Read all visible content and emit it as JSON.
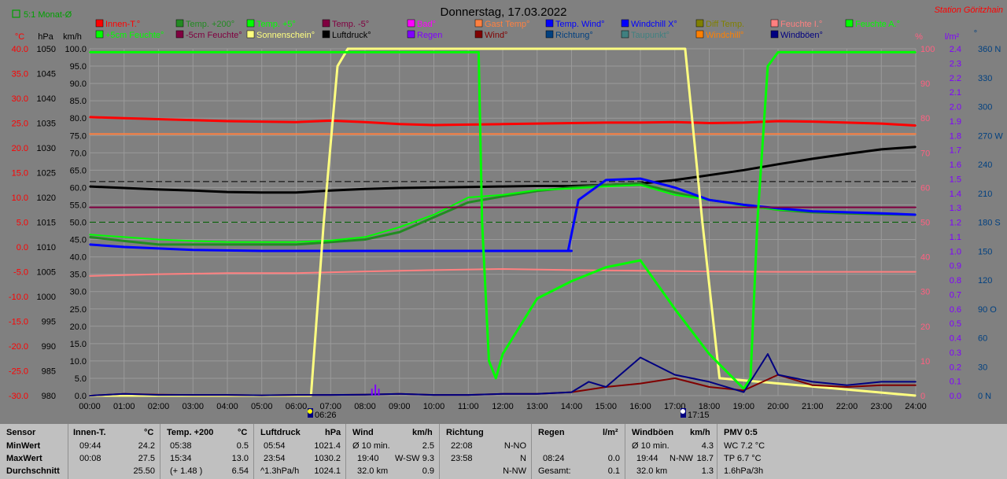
{
  "header": {
    "title": "Donnerstag, 17.03.2022",
    "station": "Station Göritzhain",
    "toggle_label": "5:1 Monat-Ø"
  },
  "units": {
    "celsius": "°C",
    "hpa": "hPa",
    "kmh": "km/h",
    "percent": "%",
    "lm2": "l/m²",
    "deg": "°"
  },
  "legend": [
    {
      "label": "Innen-T.°",
      "color": "#ff0000"
    },
    {
      "label": "Temp. +200°",
      "color": "#228b22"
    },
    {
      "label": "Temp. +5°",
      "color": "#00ff00"
    },
    {
      "label": "Temp. -5°",
      "color": "#800040"
    },
    {
      "label": "Bad°",
      "color": "#ff00ff"
    },
    {
      "label": "Gast Temp°",
      "color": "#ff8040"
    },
    {
      "label": "Temp. Wind°",
      "color": "#0000ff"
    },
    {
      "label": "Windchill X°",
      "color": "#0000ff"
    },
    {
      "label": "Diff Temp.",
      "color": "#808000"
    },
    {
      "label": "Feuchte I.°",
      "color": "#ff8080"
    },
    {
      "label": "Feuchte A.°",
      "color": "#00ff00"
    },
    {
      "label": "+5cm Feuchte°",
      "color": "#00ff00"
    },
    {
      "label": "-5cm Feuchte°",
      "color": "#800040"
    },
    {
      "label": "Sonnenschein°",
      "color": "#ffff80"
    },
    {
      "label": "Luftdruck°",
      "color": "#000000"
    },
    {
      "label": "Regen",
      "color": "#8000ff"
    },
    {
      "label": "Wind°",
      "color": "#800000"
    },
    {
      "label": "Richtung°",
      "color": "#004080"
    },
    {
      "label": "Taupunkt°",
      "color": "#408080"
    },
    {
      "label": "Windchill°",
      "color": "#ff8000"
    },
    {
      "label": "Windböen°",
      "color": "#000080"
    }
  ],
  "sun_labels": {
    "sunrise": "06:26",
    "sunset": "17:15"
  },
  "chart_data": {
    "type": "line",
    "x_ticks": [
      "00:00",
      "01:00",
      "02:00",
      "03:00",
      "04:00",
      "05:00",
      "06:00",
      "07:00",
      "08:00",
      "09:00",
      "10:00",
      "11:00",
      "12:00",
      "13:00",
      "14:00",
      "15:00",
      "16:00",
      "17:00",
      "18:00",
      "19:00",
      "20:00",
      "21:00",
      "22:00",
      "23:00",
      "24:00"
    ],
    "x_range_hours": [
      0,
      24
    ],
    "grid": true,
    "axes": {
      "temp_c": {
        "ticks": [
          "40.0",
          "35.0",
          "30.0",
          "25.0",
          "20.0",
          "15.0",
          "10.0",
          "5.0",
          "0.0",
          "-5.0",
          "-10.0",
          "-15.0",
          "-20.0",
          "-25.0",
          "-30.0"
        ],
        "range": [
          -30,
          40
        ]
      },
      "pressure_hpa": {
        "ticks": [
          "1050",
          "1045",
          "1040",
          "1035",
          "1030",
          "1025",
          "1020",
          "1015",
          "1010",
          "1005",
          "1000",
          "995",
          "990",
          "985",
          "980"
        ],
        "range": [
          980,
          1050
        ]
      },
      "wind_kmh": {
        "ticks": [
          "100.0",
          "95.0",
          "90.0",
          "85.0",
          "80.0",
          "75.0",
          "70.0",
          "65.0",
          "60.0",
          "55.0",
          "50.0",
          "45.0",
          "40.0",
          "35.0",
          "30.0",
          "25.0",
          "20.0",
          "15.0",
          "10.0",
          "5.0",
          "0.0"
        ],
        "range": [
          0,
          100
        ]
      },
      "humidity_pct": {
        "ticks": [
          "100",
          "90",
          "80",
          "70",
          "60",
          "50",
          "40",
          "30",
          "20",
          "10",
          "0"
        ],
        "range": [
          0,
          100
        ]
      },
      "rain_lm2": {
        "ticks": [
          "2.4",
          "2.3",
          "2.2",
          "2.1",
          "2.0",
          "1.9",
          "1.8",
          "1.7",
          "1.6",
          "1.5",
          "1.4",
          "1.3",
          "1.2",
          "1.1",
          "1.0",
          "0.9",
          "0.8",
          "0.7",
          "0.6",
          "0.5",
          "0.4",
          "0.3",
          "0.2",
          "0.1",
          "0.0"
        ],
        "range": [
          0,
          2.5
        ]
      },
      "direction_deg": {
        "ticks": [
          "360 N",
          "330",
          "300",
          "270 W",
          "240",
          "210",
          "180 S",
          "150",
          "120",
          "90 O",
          "60",
          "30",
          "0 N"
        ],
        "range": [
          0,
          360
        ]
      }
    },
    "series": [
      {
        "name": "Innen-T.°",
        "axis": "temp_c",
        "x": [
          0,
          1,
          2,
          3,
          4,
          5,
          6,
          7,
          8,
          9,
          10,
          11,
          12,
          13,
          14,
          15,
          16,
          17,
          18,
          19,
          20,
          21,
          22,
          23,
          24
        ],
        "values": [
          26.2,
          26.0,
          25.8,
          25.6,
          25.4,
          25.3,
          25.2,
          25.5,
          25.2,
          24.8,
          24.6,
          24.7,
          24.8,
          24.9,
          25.0,
          25.1,
          25.1,
          25.2,
          25.0,
          25.1,
          25.4,
          25.3,
          25.1,
          24.9,
          24.5
        ]
      },
      {
        "name": "Gast Temp°",
        "axis": "temp_c",
        "x": [
          0,
          24
        ],
        "values": [
          22.8,
          22.8
        ]
      },
      {
        "name": "Feuchte I.°",
        "axis": "humidity_pct",
        "x": [
          0,
          2,
          4,
          6,
          8,
          10,
          12,
          14,
          16,
          18,
          20,
          22,
          24
        ],
        "values": [
          34.5,
          35.0,
          35.3,
          35.3,
          35.8,
          36.2,
          36.5,
          36.2,
          36.0,
          35.8,
          35.7,
          35.7,
          35.7
        ]
      },
      {
        "name": "Luftdruck°",
        "axis": "pressure_hpa",
        "x": [
          0,
          1,
          2,
          3,
          4,
          5,
          6,
          7,
          8,
          9,
          10,
          11,
          12,
          13,
          14,
          15,
          16,
          17,
          18,
          19,
          20,
          21,
          22,
          23,
          24
        ],
        "values": [
          1022.2,
          1021.9,
          1021.6,
          1021.4,
          1021.1,
          1021.0,
          1021.0,
          1021.4,
          1021.7,
          1021.9,
          1022.0,
          1022.1,
          1022.2,
          1022.3,
          1022.3,
          1022.5,
          1022.8,
          1023.5,
          1024.5,
          1025.5,
          1026.7,
          1027.8,
          1028.8,
          1029.7,
          1030.2
        ]
      },
      {
        "name": "Temp. +200°",
        "axis": "temp_c",
        "x": [
          0,
          1,
          2,
          3,
          4,
          5,
          6,
          7,
          8,
          9,
          10,
          11,
          12,
          13,
          14,
          15,
          16,
          17,
          18,
          19,
          20,
          21,
          22,
          23,
          24
        ],
        "values": [
          2.0,
          1.2,
          0.5,
          0.5,
          0.5,
          0.5,
          0.5,
          1.0,
          1.5,
          3.0,
          6.0,
          9.0,
          10.2,
          11.3,
          12.0,
          12.5,
          12.8,
          11.0,
          9.5,
          8.5,
          7.5,
          7.0,
          6.8,
          6.6,
          6.5
        ]
      },
      {
        "name": "Temp. +5°",
        "axis": "temp_c",
        "x": [
          0,
          1,
          2,
          3,
          4,
          5,
          6,
          7,
          8,
          9,
          10,
          11,
          12,
          13,
          14,
          15,
          16,
          17,
          18,
          19,
          20,
          21,
          22,
          23,
          24
        ],
        "values": [
          2.5,
          2.0,
          1.5,
          1.2,
          1.0,
          1.0,
          1.0,
          1.3,
          2.0,
          4.0,
          6.5,
          10.0,
          10.5,
          11.5,
          11.8,
          12.2,
          12.5,
          10.5,
          9.5,
          8.3,
          7.5,
          7.2,
          7.0,
          6.8,
          6.5
        ]
      },
      {
        "name": "Temp. Wind°",
        "axis": "temp_c",
        "x": [
          0,
          1,
          2,
          3,
          4,
          5,
          6,
          7,
          8,
          9,
          10,
          11,
          12,
          13,
          14,
          13.9,
          14.2,
          15,
          16,
          17,
          18,
          19,
          20,
          21,
          22,
          23,
          24
        ],
        "values": [
          0.5,
          0.0,
          -0.3,
          -0.6,
          -0.7,
          -0.8,
          -0.8,
          -0.8,
          -0.8,
          -0.8,
          -0.8,
          -0.8,
          -0.8,
          -0.8,
          -0.8,
          -0.8,
          9.5,
          13.5,
          13.8,
          12.0,
          9.5,
          8.5,
          7.8,
          7.2,
          7.0,
          6.8,
          6.5
        ]
      },
      {
        "name": "Temp. -5°",
        "axis": "temp_c",
        "x": [
          0,
          24
        ],
        "values": [
          8.0,
          8.0
        ]
      },
      {
        "name": "Sonnenschein°",
        "axis": "wind_kmh",
        "x": [
          0,
          6.43,
          6.8,
          7.2,
          7.5,
          17,
          17.3,
          17.8,
          18.3,
          24
        ],
        "values": [
          0,
          0,
          50,
          95,
          100,
          100,
          100,
          50,
          5,
          0
        ]
      },
      {
        "name": "Feuchte A.°",
        "axis": "humidity_pct",
        "x": [
          0,
          11.3,
          11.4,
          11.6,
          11.8,
          12,
          13,
          14,
          15,
          16,
          17,
          18,
          19,
          19.2,
          19.4,
          19.7,
          20,
          24
        ],
        "values": [
          99,
          99,
          50,
          10,
          5,
          12,
          28,
          33,
          37,
          39,
          25,
          12,
          2,
          5,
          50,
          95,
          99,
          99
        ]
      },
      {
        "name": "Wind°",
        "axis": "wind_kmh",
        "x": [
          0,
          1,
          2,
          3,
          4,
          5,
          6,
          7,
          8,
          9,
          10,
          11,
          12,
          13,
          14,
          15,
          16,
          17,
          18,
          19,
          20,
          21,
          22,
          23,
          24
        ],
        "values": [
          0,
          0.5,
          0.3,
          0.2,
          0.2,
          0.1,
          0.2,
          0.2,
          0.3,
          0.5,
          0.2,
          0.2,
          0.5,
          0.5,
          1.0,
          2.5,
          3.5,
          5.0,
          2.5,
          1.5,
          6.0,
          3.0,
          2.5,
          3.0,
          3.0
        ]
      },
      {
        "name": "Windböen°",
        "axis": "wind_kmh",
        "x": [
          0,
          1,
          2,
          3,
          4,
          5,
          6,
          7,
          8,
          9,
          10,
          11,
          12,
          13,
          14,
          14.5,
          15,
          16,
          17,
          18,
          19,
          19.7,
          20,
          21,
          22,
          23,
          24
        ],
        "values": [
          0,
          0.5,
          0.2,
          0.2,
          0.2,
          0.1,
          0.2,
          0.2,
          0.3,
          0.5,
          0.2,
          0.2,
          0.5,
          0.5,
          1.0,
          4.0,
          2.5,
          11.0,
          6.0,
          4.0,
          1.0,
          12.0,
          6.0,
          4.0,
          3.0,
          4.0,
          4.0
        ]
      },
      {
        "name": "Regen",
        "axis": "rain_lm2",
        "x": [
          8.2,
          8.3,
          8.4
        ],
        "values": [
          0.05,
          0.08,
          0.05
        ]
      }
    ],
    "reference_lines": [
      {
        "name": "dashed-black",
        "axis": "pressure_hpa",
        "value": 1023.2
      },
      {
        "name": "dashed-green",
        "axis": "humidity_pct",
        "value": 50
      }
    ]
  },
  "stats": {
    "row_labels": {
      "header": "Sensor",
      "min": "MinWert",
      "max": "MaxWert",
      "avg": "Durchschnitt"
    },
    "innen": {
      "header": "Innen-T.",
      "unit": "°C",
      "min_time": "09:44",
      "min_val": "24.2",
      "max_time": "00:08",
      "max_val": "27.5",
      "avg_val": "25.50"
    },
    "temp200": {
      "header": "Temp. +200",
      "unit": "°C",
      "min_time": "05:38",
      "min_val": "0.5",
      "max_time": "15:34",
      "max_val": "13.0",
      "avg_note": "(+ 1.48 )",
      "avg_val": "6.54"
    },
    "luftdruck": {
      "header": "Luftdruck",
      "unit": "hPa",
      "min_time": "05:54",
      "min_val": "1021.4",
      "max_time": "23:54",
      "max_val": "1030.2",
      "avg_note": "^1.3hPa/h",
      "avg_val": "1024.1"
    },
    "wind": {
      "header": "Wind",
      "unit": "km/h",
      "min_time": "Ø 10 min.",
      "min_val": "2.5",
      "max_time": "19:40",
      "max_dir": "W-SW",
      "max_val": "9.3",
      "avg_note": "32.0 km",
      "avg_val": "0.9"
    },
    "richtung": {
      "header": "Richtung",
      "r1_time": "22:08",
      "r1_val": "N-NO",
      "r2_time": "23:58",
      "r2_val": "N",
      "r3_val": "N-NW"
    },
    "regen": {
      "header": "Regen",
      "unit": "l/m²",
      "r2_time": "08:24",
      "r2_val": "0.0",
      "r3_label": "Gesamt:",
      "r3_val": "0.1"
    },
    "windboen": {
      "header": "Windböen",
      "unit": "km/h",
      "r1_time": "Ø 10 min.",
      "r1_val": "4.3",
      "r2_time": "19:44",
      "r2_dir": "N-NW",
      "r2_val": "18.7",
      "r3_note": "32.0 km",
      "r3_val": "1.3"
    },
    "pmv": {
      "header": "PMV 0:5",
      "r1": "WC 7.2 °C",
      "r2": "TP 6.7 °C",
      "r3": "1.6hPa/3h"
    }
  }
}
